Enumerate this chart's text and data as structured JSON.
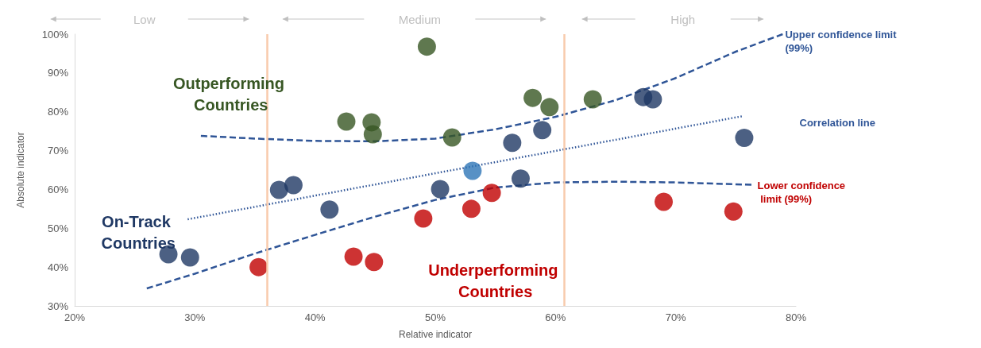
{
  "chart_data": {
    "type": "scatter",
    "xlabel": "Relative indicator",
    "ylabel": "Absolute indicator",
    "xlim": [
      20,
      80
    ],
    "ylim": [
      30,
      100
    ],
    "xticks": [
      {
        "value": 20,
        "label": "20%"
      },
      {
        "value": 30,
        "label": "30%"
      },
      {
        "value": 40,
        "label": "40%"
      },
      {
        "value": 50,
        "label": "50%"
      },
      {
        "value": 60,
        "label": "60%"
      },
      {
        "value": 70,
        "label": "70%"
      },
      {
        "value": 80,
        "label": "80%"
      }
    ],
    "yticks": [
      {
        "value": 30,
        "label": "30%"
      },
      {
        "value": 40,
        "label": "40%"
      },
      {
        "value": 50,
        "label": "50%"
      },
      {
        "value": 60,
        "label": "60%"
      },
      {
        "value": 70,
        "label": "70%"
      },
      {
        "value": 80,
        "label": "80%"
      },
      {
        "value": 90,
        "label": "90%"
      },
      {
        "value": 100,
        "label": "100%"
      }
    ],
    "grid": false,
    "legend": false,
    "marker": "circle",
    "series": [
      {
        "name": "Outperforming Countries",
        "color": "#375623",
        "x": [
          49.3,
          42.6,
          44.7,
          44.8,
          51.4,
          58.1,
          59.5,
          63.1
        ],
        "values": [
          96.8,
          77.5,
          77.3,
          74.2,
          73.4,
          83.6,
          81.2,
          83.2
        ]
      },
      {
        "name": "On-Track Countries",
        "color": "#1f3864",
        "x": [
          27.8,
          29.6,
          37.0,
          38.2,
          41.2,
          50.4,
          56.4,
          58.9,
          57.1,
          67.3,
          68.1,
          75.7
        ],
        "values": [
          43.3,
          42.5,
          59.9,
          61.1,
          54.8,
          60.1,
          72.0,
          75.3,
          62.8,
          83.8,
          83.2,
          73.3
        ]
      },
      {
        "color": "#2e75b6",
        "x": [
          53.1
        ],
        "values": [
          64.8
        ]
      },
      {
        "name": "Underperforming Countries",
        "color": "#c00000",
        "x": [
          35.3,
          43.2,
          44.9,
          49.0,
          53.0,
          54.7,
          69.0,
          74.8
        ],
        "values": [
          40.0,
          42.7,
          41.3,
          52.5,
          55.0,
          59.1,
          56.8,
          54.3
        ]
      },
      {
        "name": "Upper confidence limit (99%)",
        "type": "line",
        "line_style": "dashed",
        "marker": "none",
        "color": "#2f5597",
        "x": [
          30.5,
          35,
          40,
          45,
          50,
          55,
          60,
          65,
          70,
          75,
          78.9
        ],
        "values": [
          73.8,
          73.1,
          72.5,
          72.4,
          73.1,
          75.5,
          78.7,
          83,
          88.7,
          95.5,
          100
        ]
      },
      {
        "name": "Correlation line",
        "type": "line",
        "line_style": "dotted",
        "marker": "none",
        "color": "#2f5597",
        "x": [
          29.4,
          75.6
        ],
        "values": [
          52.3,
          78.9
        ]
      },
      {
        "name": "Lower confidence limit (99%)",
        "type": "line",
        "line_style": "dashed",
        "marker": "none",
        "color": "#2f5597",
        "x": [
          26,
          30,
          35,
          40,
          45,
          50,
          55,
          60,
          65,
          70,
          76.3
        ],
        "values": [
          34.5,
          38.3,
          43.5,
          48.3,
          53,
          57.3,
          60.5,
          61.8,
          62,
          61.8,
          61.2
        ]
      }
    ],
    "ref_lines": [
      {
        "axis": "x",
        "value": 36,
        "color": "#f8cbad"
      },
      {
        "axis": "x",
        "value": 60.7,
        "color": "#f8cbad"
      }
    ],
    "annotations": [
      "Low",
      "Medium",
      "High"
    ]
  }
}
